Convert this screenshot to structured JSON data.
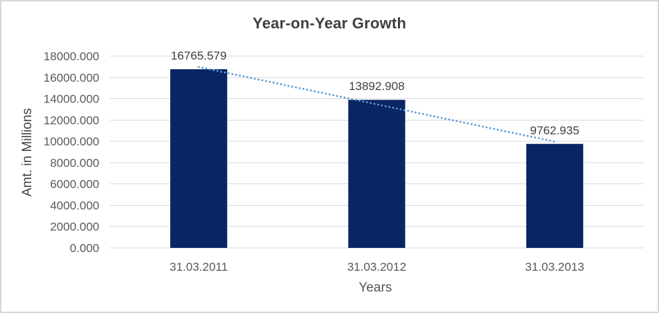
{
  "title": "Year-on-Year Growth",
  "axes": {
    "y_title": "Amt. in Millions",
    "x_title": "Years"
  },
  "chart_data": {
    "type": "bar",
    "title": "Year-on-Year Growth",
    "xlabel": "Years",
    "ylabel": "Amt. in Millions",
    "categories": [
      "31.03.2011",
      "31.03.2012",
      "31.03.2013"
    ],
    "values": [
      16765.579,
      13892.908,
      9762.935
    ],
    "data_labels": [
      "16765.579",
      "13892.908",
      "9762.935"
    ],
    "ylim": [
      0,
      18000
    ],
    "ytick_step": 2000,
    "ytick_labels": [
      "0.000",
      "2000.000",
      "4000.000",
      "6000.000",
      "8000.000",
      "10000.000",
      "12000.000",
      "14000.000",
      "16000.000",
      "18000.000"
    ],
    "grid": true,
    "legend": "none",
    "trendline": {
      "type": "linear",
      "style": "dotted"
    }
  },
  "colors": {
    "bar": "#0a2563",
    "trendline": "#5b9bd5",
    "gridline": "#d9d9d9",
    "axis_text": "#595959",
    "label_text": "#404040",
    "title_text": "#3f3f3f",
    "border": "#d6d6d6",
    "background": "#ffffff"
  }
}
